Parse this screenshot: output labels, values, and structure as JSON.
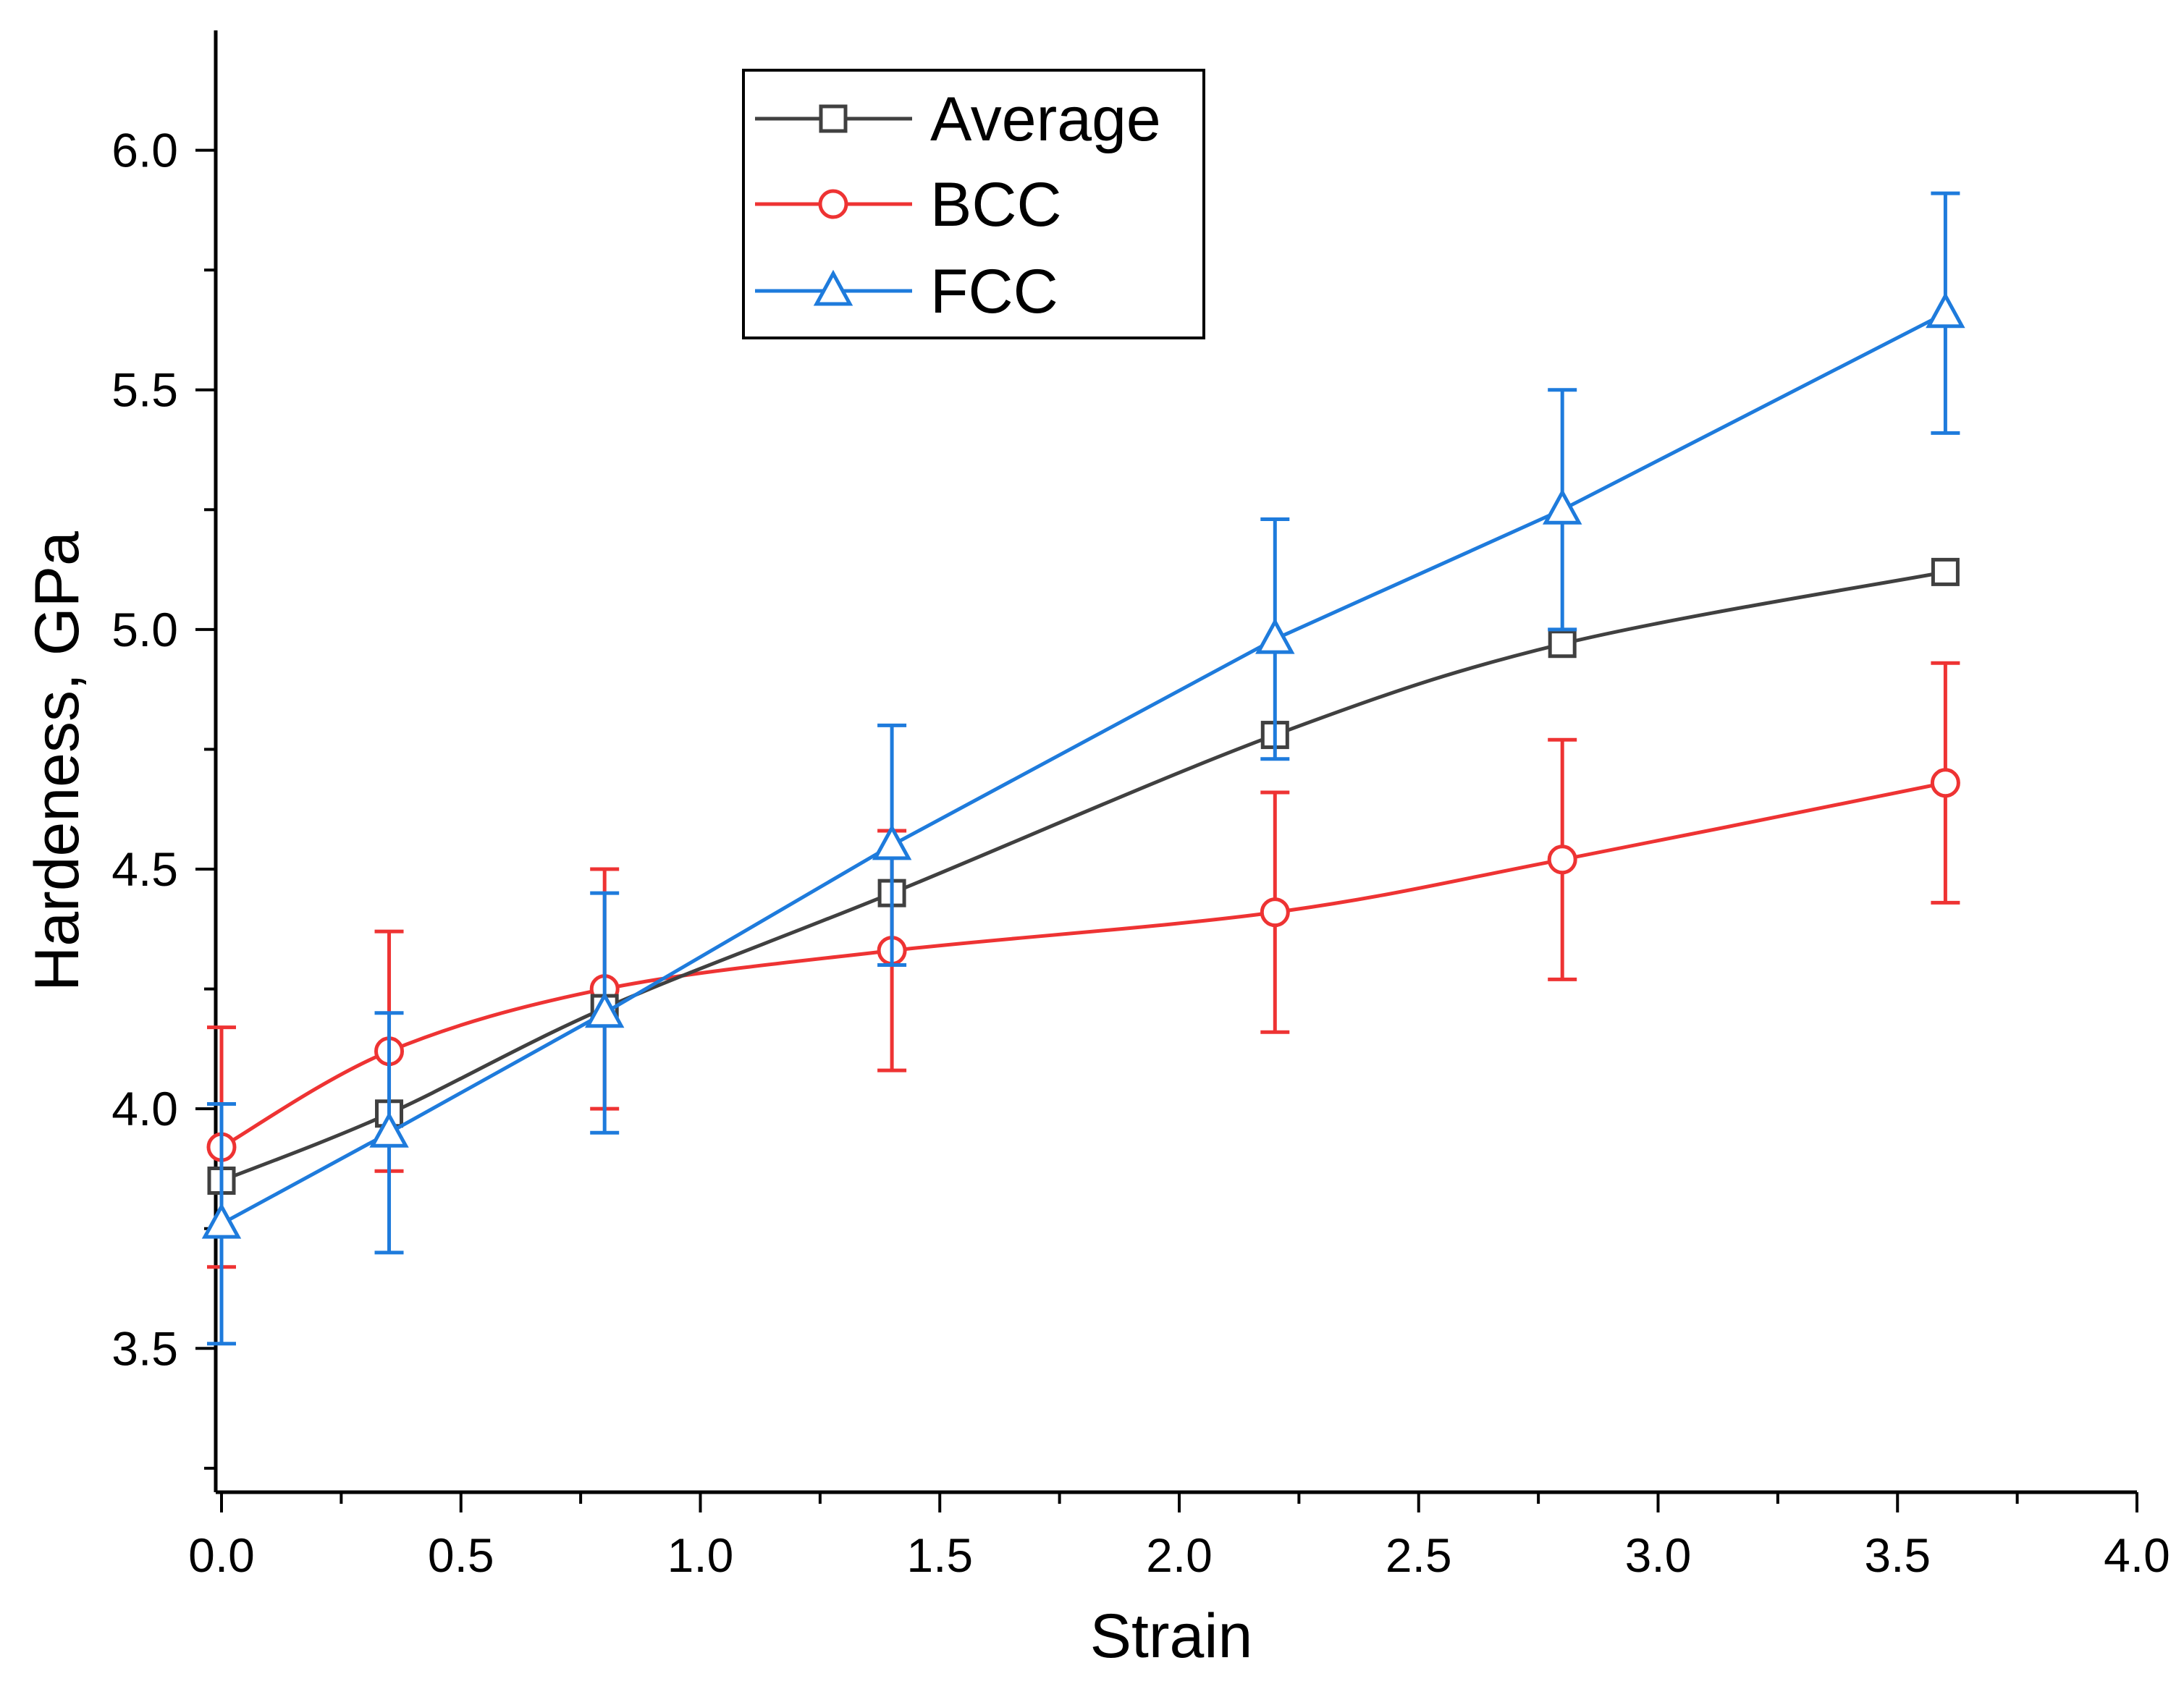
{
  "chart_data": {
    "type": "line",
    "title": "",
    "xlabel": "Strain",
    "ylabel": "Hardeness, GPa",
    "xlim": [
      0.0,
      4.0
    ],
    "ylim": [
      3.2,
      6.25
    ],
    "x_ticks": [
      "0.0",
      "0.5",
      "1.0",
      "1.5",
      "2.0",
      "2.5",
      "3.0",
      "3.5",
      "4.0"
    ],
    "x_tick_values": [
      0.0,
      0.5,
      1.0,
      1.5,
      2.0,
      2.5,
      3.0,
      3.5,
      4.0
    ],
    "x_minor_step": 0.25,
    "y_ticks": [
      "3.5",
      "4.0",
      "4.5",
      "5.0",
      "5.5",
      "6.0"
    ],
    "y_tick_values": [
      3.5,
      4.0,
      4.5,
      5.0,
      5.5,
      6.0
    ],
    "y_minor_step": 0.25,
    "grid": false,
    "legend_position": "top-center",
    "series": [
      {
        "name": "Average",
        "color": "#404040",
        "marker": "square",
        "x": [
          0.0,
          0.35,
          0.8,
          1.4,
          2.2,
          2.8,
          3.6
        ],
        "y": [
          3.85,
          3.99,
          4.21,
          4.45,
          4.78,
          4.97,
          5.12
        ],
        "error": null
      },
      {
        "name": "BCC",
        "color": "#ee3333",
        "marker": "circle",
        "x": [
          0.0,
          0.35,
          0.8,
          1.4,
          2.2,
          2.8,
          3.6
        ],
        "y": [
          3.92,
          4.12,
          4.25,
          4.33,
          4.41,
          4.52,
          4.68
        ],
        "error": [
          0.25,
          0.25,
          0.25,
          0.25,
          0.25,
          0.25,
          0.25
        ]
      },
      {
        "name": "FCC",
        "color": "#1e7bdc",
        "marker": "triangle",
        "x": [
          0.0,
          0.35,
          0.8,
          1.4,
          2.2,
          2.8,
          3.6
        ],
        "y": [
          3.76,
          3.95,
          4.2,
          4.55,
          4.98,
          5.25,
          5.66
        ],
        "error": [
          0.25,
          0.25,
          0.25,
          0.25,
          0.25,
          0.25,
          0.25
        ]
      }
    ]
  }
}
